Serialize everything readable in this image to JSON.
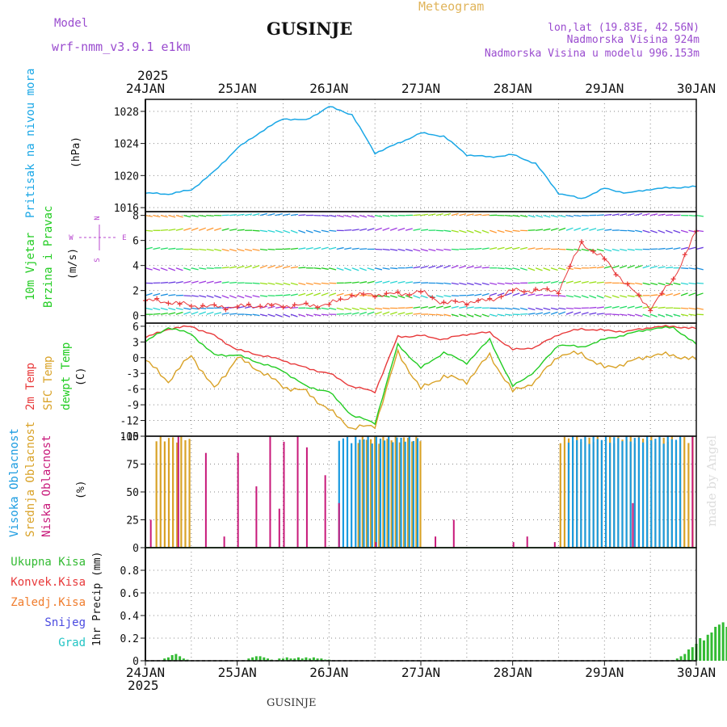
{
  "header": {
    "model_label": "Model",
    "model_name": "wrf-nmm_v3.9.1 e1km",
    "station": "GUSINJE",
    "meteogram_label": "Meteogram",
    "coords": "lon,lat (19.83E, 42.56N)",
    "elevation": "Nadmorska Visina 924m",
    "model_elevation": "Nadmorska Visina u modelu 996.153m",
    "year_top": "2025",
    "year_bottom": "2025",
    "footer_station": "GUSINJE",
    "watermark": "made by Angel"
  },
  "colors": {
    "pressure": "#1aa7e6",
    "temp": "#e8393a",
    "sfc_temp": "#d9a227",
    "dewpt": "#22cc22",
    "low_cloud": "#c8197a",
    "mid_cloud": "#d9a227",
    "high_cloud": "#1a9be0",
    "precip_total": "#33bb33",
    "wind_speed": "#e8393a",
    "title_purple": "#9a4ccf",
    "title_gold": "#e0b45a"
  },
  "chart_data": [
    {
      "type": "line",
      "panel": "pressure",
      "ylabel_main": "Pritisak na nivou mora",
      "ylabel_unit": "(hPa)",
      "ylim": [
        1015.5,
        1029.5
      ],
      "yticks": [
        1016,
        1020,
        1024,
        1028
      ],
      "ytick_labels": [
        "1016",
        "1020",
        "1024",
        "1028"
      ],
      "grid": true,
      "x_start": "2025-01-24",
      "x_hours": [
        0,
        6,
        12,
        18,
        24,
        30,
        36,
        42,
        48,
        54,
        60,
        66,
        72,
        78,
        84,
        90,
        96,
        102,
        108,
        114,
        120,
        126,
        132,
        138,
        144
      ],
      "series": [
        {
          "values": [
            1017.8,
            1017.7,
            1018.2,
            1020.5,
            1023.4,
            1025.4,
            1027.1,
            1026.9,
            1028.6,
            1027.6,
            1022.8,
            1024.0,
            1025.3,
            1024.9,
            1022.6,
            1022.3,
            1022.6,
            1021.5,
            1017.8,
            1017.1,
            1018.4,
            1017.8,
            1018.3,
            1018.5,
            1018.6
          ]
        }
      ]
    },
    {
      "type": "line",
      "panel": "wind",
      "ylabel_main": "10m Vjetar",
      "ylabel_sub": "Brzina i Pravac",
      "ylabel_unit": "(m/s)",
      "compass": {
        "n": "N",
        "e": "E",
        "w": "W",
        "s": "S"
      },
      "ylim": [
        -0.6,
        8.3
      ],
      "yticks": [
        0,
        2,
        4,
        6,
        8
      ],
      "ytick_labels": [
        "0",
        "2",
        "4",
        "6",
        "8"
      ],
      "grid": true,
      "x_hours": [
        0,
        6,
        12,
        18,
        24,
        30,
        36,
        42,
        48,
        54,
        60,
        66,
        72,
        78,
        84,
        90,
        96,
        102,
        108,
        114,
        120,
        126,
        132,
        138,
        144
      ],
      "series": [
        {
          "values": [
            1.2,
            1.1,
            0.8,
            0.7,
            0.7,
            0.8,
            0.8,
            0.8,
            0.9,
            1.6,
            1.7,
            1.7,
            1.9,
            1.0,
            1.1,
            1.2,
            2.0,
            2.0,
            2.0,
            5.8,
            4.5,
            2.4,
            0.6,
            2.9,
            6.7
          ]
        }
      ],
      "arrow_rows": [
        0.1,
        0.6,
        1.6,
        2.6,
        3.8,
        5.3,
        6.8,
        8.0
      ]
    },
    {
      "type": "line",
      "panel": "temperature",
      "ylabel_main": "2m Temp",
      "ylabel_sfc": "SFC Temp",
      "ylabel_dew": "dewpt Temp",
      "ylabel_unit": "(C)",
      "ylim": [
        -15,
        6.6
      ],
      "yticks": [
        -15,
        -12,
        -9,
        -6,
        -3,
        0,
        3,
        6
      ],
      "ytick_labels": [
        "-15",
        "-12",
        "-9",
        "-6",
        "-3",
        "0",
        "3",
        "6"
      ],
      "grid": true,
      "x_hours": [
        0,
        6,
        12,
        18,
        24,
        30,
        36,
        42,
        48,
        54,
        60,
        66,
        72,
        78,
        84,
        90,
        96,
        102,
        108,
        114,
        120,
        126,
        132,
        138,
        144
      ],
      "series": [
        {
          "name": "2m Temp",
          "values": [
            3.8,
            5.5,
            6.0,
            4.2,
            1.5,
            0.5,
            -0.5,
            -2.0,
            -3.0,
            -5.5,
            -6.5,
            4.0,
            4.2,
            3.5,
            4.5,
            4.8,
            1.5,
            2.0,
            4.5,
            5.5,
            5.2,
            5.0,
            5.8,
            6.0,
            5.5
          ]
        },
        {
          "name": "SFC Temp",
          "values": [
            -0.5,
            -4.5,
            0.5,
            -6.0,
            0.0,
            -2.5,
            -5.5,
            -6.5,
            -10.0,
            -13.5,
            -13.0,
            1.0,
            -6.0,
            -3.5,
            -4.5,
            0.5,
            -6.5,
            -4.5,
            0.5,
            0.8,
            -2.0,
            -1.0,
            0.5,
            0.5,
            -0.5
          ]
        },
        {
          "name": "dewpt Temp",
          "values": [
            3.0,
            5.8,
            4.5,
            0.5,
            0.5,
            -1.0,
            -2.5,
            -5.5,
            -6.5,
            -11.0,
            -12.5,
            2.5,
            -2.0,
            1.0,
            -1.0,
            3.5,
            -5.5,
            -2.5,
            2.5,
            2.0,
            3.5,
            4.5,
            5.5,
            5.8,
            2.5
          ]
        }
      ]
    },
    {
      "type": "bar",
      "panel": "cloud",
      "ylabel_high": "Visoka Oblacnost",
      "ylabel_mid": "Srednja Oblacnost",
      "ylabel_low": "Niska Oblacnost",
      "ylabel_unit": "(%)",
      "ylim": [
        0,
        100
      ],
      "yticks": [
        0,
        25,
        50,
        75,
        100
      ],
      "ytick_labels": [
        "0",
        "25",
        "50",
        "75",
        "100"
      ],
      "grid": true,
      "series": [
        {
          "name": "high",
          "blocks": [
            [
              26.1,
              27.0,
              100
            ],
            [
              28.6,
              29.85,
              100
            ]
          ]
        },
        {
          "name": "mid",
          "blocks": [
            [
              24.1,
              24.5,
              100
            ],
            [
              26.3,
              27.0,
              100
            ],
            [
              28.5,
              29.95,
              100
            ]
          ]
        },
        {
          "name": "low",
          "spikes": [
            [
              24.05,
              25
            ],
            [
              24.35,
              100
            ],
            [
              24.65,
              85
            ],
            [
              24.85,
              10
            ],
            [
              25.0,
              85
            ],
            [
              25.2,
              55
            ],
            [
              25.35,
              100
            ],
            [
              25.45,
              35
            ],
            [
              25.5,
              95
            ],
            [
              25.65,
              100
            ],
            [
              25.75,
              90
            ],
            [
              25.95,
              65
            ],
            [
              26.1,
              40
            ],
            [
              26.5,
              5
            ],
            [
              27.15,
              10
            ],
            [
              27.35,
              25
            ],
            [
              28.0,
              5
            ],
            [
              28.15,
              10
            ],
            [
              28.45,
              5
            ],
            [
              29.3,
              40
            ],
            [
              29.95,
              100
            ]
          ]
        }
      ]
    },
    {
      "type": "bar",
      "panel": "precip",
      "ylabel_total": "Ukupna Kisa",
      "ylabel_conv": "Konvek.Kisa",
      "ylabel_frz": "Zaledj.Kisa",
      "ylabel_snow": "Snijeg",
      "ylabel_hail": "Grad",
      "ylabel_unit": "1hr Precip (mm)",
      "ylim": [
        0,
        1.0
      ],
      "yticks": [
        0,
        0.2,
        0.4,
        0.6,
        0.8
      ],
      "ytick_labels": [
        "0",
        "0.2",
        "0.4",
        "0.6",
        "0.8"
      ],
      "grid": true,
      "x_hours": [
        5,
        6,
        7,
        8,
        9,
        10,
        11,
        27,
        28,
        29,
        30,
        31,
        32,
        33,
        35,
        36,
        37,
        38,
        39,
        40,
        41,
        42,
        43,
        44,
        45,
        46,
        47,
        48,
        139,
        140,
        141,
        142,
        143,
        144,
        145,
        146,
        147,
        148,
        149,
        150,
        151,
        152,
        153,
        154,
        155,
        156,
        157,
        158,
        159,
        160,
        161,
        162
      ],
      "values": [
        0.02,
        0.03,
        0.05,
        0.06,
        0.04,
        0.02,
        0.01,
        0.02,
        0.03,
        0.04,
        0.04,
        0.03,
        0.02,
        0.01,
        0.02,
        0.02,
        0.03,
        0.02,
        0.02,
        0.03,
        0.02,
        0.03,
        0.02,
        0.03,
        0.02,
        0.02,
        0.01,
        0.01,
        0.02,
        0.04,
        0.06,
        0.1,
        0.12,
        0.15,
        0.2,
        0.18,
        0.23,
        0.25,
        0.3,
        0.32,
        0.34,
        0.3,
        0.28,
        0.31,
        0.25,
        0.22,
        0.18,
        0.17,
        0.15,
        0.12,
        0.08,
        0.05
      ]
    }
  ],
  "x_axis": {
    "tick_labels": [
      "24JAN",
      "25JAN",
      "26JAN",
      "27JAN",
      "28JAN",
      "29JAN",
      "30JAN"
    ]
  }
}
